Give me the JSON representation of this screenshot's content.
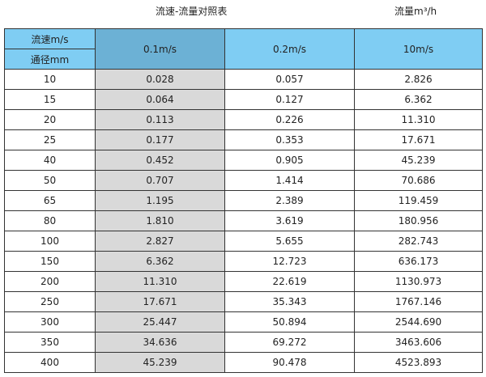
{
  "title": "流速-流量对照表",
  "unit": "流量m³/h",
  "header": {
    "velocity_label": "流速m/s",
    "diameter_label": "通径mm",
    "columns": [
      "0.1m/s",
      "0.2m/s",
      "10m/s"
    ]
  },
  "colors": {
    "header": "#7fcdf3",
    "highlight_header": "#6cb1d5",
    "highlight_column": "#d9d9d9"
  },
  "rows": [
    [
      "10",
      "0.028",
      "0.057",
      "2.826"
    ],
    [
      "15",
      "0.064",
      "0.127",
      "6.362"
    ],
    [
      "20",
      "0.113",
      "0.226",
      "11.310"
    ],
    [
      "25",
      "0.177",
      "0.353",
      "17.671"
    ],
    [
      "40",
      "0.452",
      "0.905",
      "45.239"
    ],
    [
      "50",
      "0.707",
      "1.414",
      "70.686"
    ],
    [
      "65",
      "1.195",
      "2.389",
      "119.459"
    ],
    [
      "80",
      "1.810",
      "3.619",
      "180.956"
    ],
    [
      "100",
      "2.827",
      "5.655",
      "282.743"
    ],
    [
      "150",
      "6.362",
      "12.723",
      "636.173"
    ],
    [
      "200",
      "11.310",
      "22.619",
      "1130.973"
    ],
    [
      "250",
      "17.671",
      "35.343",
      "1767.146"
    ],
    [
      "300",
      "25.447",
      "50.894",
      "2544.690"
    ],
    [
      "350",
      "34.636",
      "69.272",
      "3463.606"
    ],
    [
      "400",
      "45.239",
      "90.478",
      "4523.893"
    ]
  ]
}
